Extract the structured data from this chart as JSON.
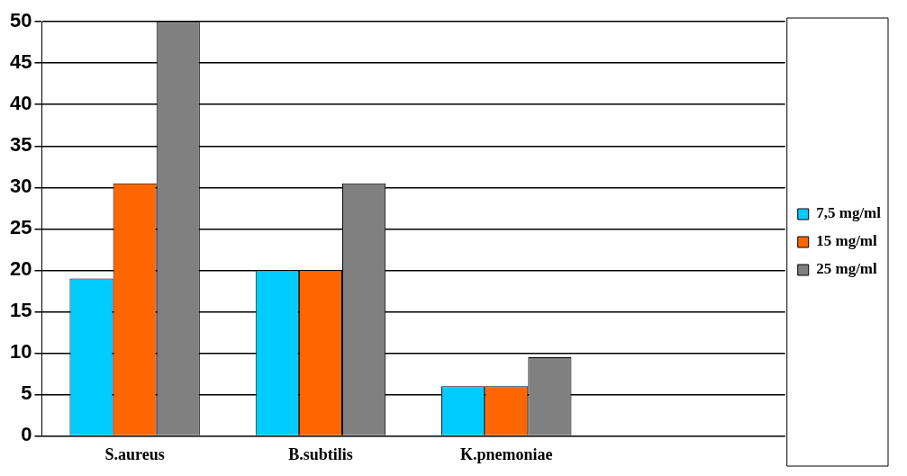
{
  "chart_data": {
    "type": "bar",
    "categories": [
      "S.aureus",
      "B.subtilis",
      "K.pnemoniae",
      null
    ],
    "series": [
      {
        "name": "7,5 mg/ml",
        "color": "#00ccff",
        "values": [
          19,
          20,
          6,
          null
        ]
      },
      {
        "name": "15 mg/ml",
        "color": "#ff6600",
        "values": [
          30.5,
          20,
          6,
          null
        ]
      },
      {
        "name": "25 mg/ml",
        "color": "#808080",
        "values": [
          50,
          30.5,
          9.5,
          null
        ]
      }
    ],
    "ylim": [
      0,
      50
    ],
    "yticks": [
      0,
      5,
      10,
      15,
      20,
      25,
      30,
      35,
      40,
      45,
      50
    ],
    "grid": "y",
    "legend": "right"
  }
}
